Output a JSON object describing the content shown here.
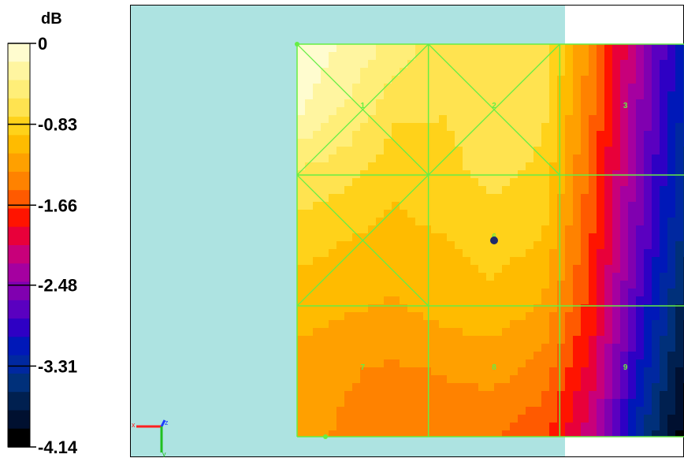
{
  "chart_data": {
    "type": "heatmap",
    "title": "",
    "colorbar": {
      "unit": "dB",
      "ticks": [
        0,
        -0.83,
        -1.66,
        -2.48,
        -3.31,
        -4.14
      ],
      "tick_labels": [
        "0",
        "-0.83",
        "-1.66",
        "-2.48",
        "-3.31",
        "-4.14"
      ],
      "range": [
        -4.14,
        0
      ],
      "colors": [
        "#fffccf",
        "#fff5a0",
        "#ffee78",
        "#ffe350",
        "#ffd21a",
        "#ffbb00",
        "#ffa000",
        "#ff8200",
        "#ff5a00",
        "#ff1400",
        "#e8003a",
        "#c8007a",
        "#a500a0",
        "#8000b0",
        "#5a00c0",
        "#2e00c4",
        "#0018b8",
        "#0028a0",
        "#00307a",
        "#002050",
        "#001030",
        "#000000"
      ]
    },
    "grid": {
      "rows": 3,
      "cols": 3,
      "cell_labels": [
        "1",
        "2",
        "3",
        "",
        "6",
        "",
        "7",
        "8",
        "9"
      ],
      "diagonals_in_cells": [
        1,
        2,
        4
      ]
    },
    "field_values_db": [
      [
        -0.05,
        -0.2,
        -0.45,
        -0.7,
        -0.6,
        -0.6,
        -1.4,
        -2.4,
        -3.3
      ],
      [
        -0.15,
        -0.4,
        -0.7,
        -0.75,
        -0.65,
        -0.7,
        -1.5,
        -2.5,
        -3.4
      ],
      [
        -0.6,
        -0.7,
        -0.9,
        -0.8,
        -0.7,
        -0.8,
        -1.6,
        -2.6,
        -3.5
      ],
      [
        -0.85,
        -0.95,
        -1.0,
        -0.95,
        -0.85,
        -0.95,
        -1.7,
        -2.7,
        -3.6
      ],
      [
        -1.05,
        -1.1,
        -1.15,
        -1.05,
        -1.0,
        -1.15,
        -1.8,
        -2.9,
        -3.8
      ],
      [
        -1.2,
        -1.3,
        -1.35,
        -1.3,
        -1.25,
        -1.4,
        -2.0,
        -3.1,
        -4.0
      ],
      [
        -1.25,
        -1.35,
        -1.45,
        -1.45,
        -1.5,
        -1.65,
        -2.2,
        -3.4,
        -4.14
      ]
    ],
    "marker": {
      "row": 1.5,
      "col": 1.5,
      "color": "#1f2a6b"
    },
    "background_color": "#ade3e1",
    "grid_line_color": "#66ee44",
    "axis_triad": [
      "x",
      "z",
      "y"
    ]
  }
}
